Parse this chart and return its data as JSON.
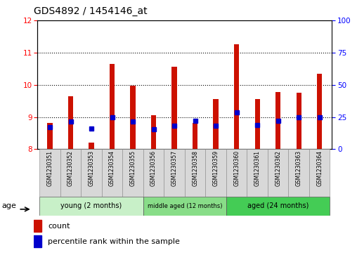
{
  "title": "GDS4892 / 1454146_at",
  "samples": [
    "GSM1230351",
    "GSM1230352",
    "GSM1230353",
    "GSM1230354",
    "GSM1230355",
    "GSM1230356",
    "GSM1230357",
    "GSM1230358",
    "GSM1230359",
    "GSM1230360",
    "GSM1230361",
    "GSM1230362",
    "GSM1230363",
    "GSM1230364"
  ],
  "count_values": [
    8.82,
    9.65,
    8.2,
    10.65,
    9.98,
    9.05,
    10.55,
    8.82,
    9.55,
    11.25,
    9.55,
    9.78,
    9.75,
    10.35
  ],
  "percentile_values": [
    8.68,
    8.85,
    8.65,
    8.98,
    8.85,
    8.62,
    8.72,
    8.88,
    8.72,
    9.15,
    8.75,
    8.88,
    8.98,
    8.98
  ],
  "ylim_left": [
    8.0,
    12.0
  ],
  "ylim_right": [
    0,
    100
  ],
  "yticks_left": [
    8,
    9,
    10,
    11,
    12
  ],
  "yticks_right": [
    0,
    25,
    50,
    75,
    100
  ],
  "bar_color": "#cc1100",
  "dot_color": "#0000cc",
  "bar_bottom": 8.0,
  "bar_width": 0.25,
  "groups": [
    {
      "label": "young (2 months)",
      "start": 0,
      "end": 5
    },
    {
      "label": "middle aged (12 months)",
      "start": 5,
      "end": 9
    },
    {
      "label": "aged (24 months)",
      "start": 9,
      "end": 14
    }
  ],
  "group_colors": [
    "#c8f0c8",
    "#88dd88",
    "#44cc55"
  ],
  "legend_count": "count",
  "legend_percentile": "percentile rank within the sample",
  "age_label": "age",
  "label_box_color": "#d8d8d8",
  "dot_size": 4.0
}
